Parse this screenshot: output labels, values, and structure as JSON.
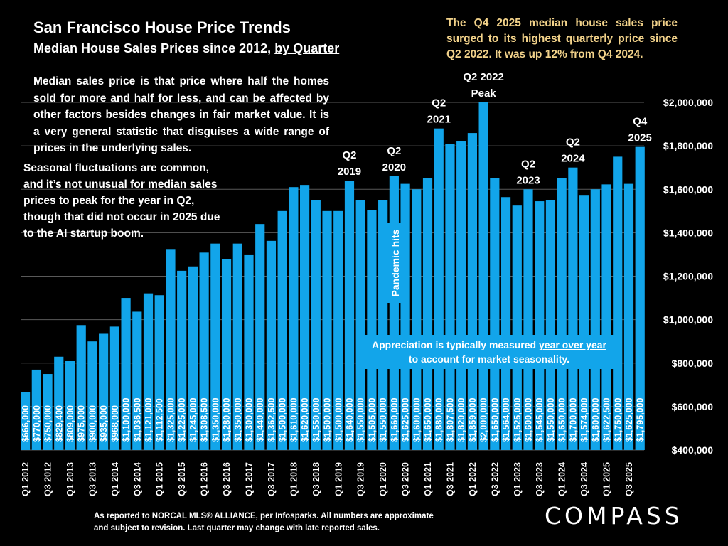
{
  "title": "San Francisco House Price Trends",
  "subtitle_prefix": "Median House Sales Prices since 2012, ",
  "subtitle_link": "by Quarter",
  "note1": "Median sales price is that price where half the homes sold for more and half for less, and can be affected by other factors besides changes in fair market value. It is a very general statistic that disguises a wide range of prices in the underlying sales.",
  "note2": "Seasonal fluctuations are common, and it’s not unusual for median sales prices to peak for the year in Q2, though that did not occur in 2025 due to the AI startup boom.",
  "headline": "The Q4 2025 median house sales price surged to its highest quarterly price since Q2 2022. It was up 12% from Q4 2024.",
  "pandemic_label": "Pandemic hits",
  "appreciation_prefix": "Appreciation is typically measured ",
  "appreciation_underlined": "year over year",
  "appreciation_suffix": "to account for market seasonality.",
  "footer_line1": "As reported to NORCAL MLS® ALLIANCE, per Infosparks. All numbers are approximate",
  "footer_line2": "and subject to revision. Last quarter may change with late reported sales.",
  "logo": "COMPASS",
  "colors": {
    "bar": "#12a5ea",
    "background": "#000000",
    "headline": "#f2d28a",
    "grid": "#595959"
  },
  "chart_data": {
    "type": "bar",
    "title": "San Francisco House Price Trends",
    "subtitle": "Median House Sales Prices since 2012, by Quarter",
    "ylim": [
      400000,
      2000000
    ],
    "y_ticks": [
      400000,
      600000,
      800000,
      1000000,
      1200000,
      1400000,
      1600000,
      1800000,
      2000000
    ],
    "y_tick_labels": [
      "$400,000",
      "$600,000",
      "$800,000",
      "$1,000,000",
      "$1,200,000",
      "$1,400,000",
      "$1,600,000",
      "$1,800,000",
      "$2,000,000"
    ],
    "y_axis_position": "right",
    "grid": true,
    "categories": [
      "Q1 2012",
      "Q2 2012",
      "Q3 2012",
      "Q4 2012",
      "Q1 2013",
      "Q2 2013",
      "Q3 2013",
      "Q4 2013",
      "Q1 2014",
      "Q2 2014",
      "Q3 2014",
      "Q4 2014",
      "Q1 2015",
      "Q2 2015",
      "Q3 2015",
      "Q4 2015",
      "Q1 2016",
      "Q2 2016",
      "Q3 2016",
      "Q4 2016",
      "Q1 2017",
      "Q2 2017",
      "Q3 2017",
      "Q4 2017",
      "Q1 2018",
      "Q2 2018",
      "Q3 2018",
      "Q4 2018",
      "Q1 2019",
      "Q2 2019",
      "Q3 2019",
      "Q4 2019",
      "Q1 2020",
      "Q2 2020",
      "Q3 2020",
      "Q4 2020",
      "Q1 2021",
      "Q2 2021",
      "Q3 2021",
      "Q4 2021",
      "Q1 2022",
      "Q2 2022",
      "Q3 2022",
      "Q4 2022",
      "Q1 2023",
      "Q2 2023",
      "Q3 2023",
      "Q4 2023",
      "Q1 2024",
      "Q2 2024",
      "Q3 2024",
      "Q4 2024",
      "Q1 2025",
      "Q2 2025",
      "Q3 2025",
      "Q4 2025"
    ],
    "shown_x_tick_labels": "every other quarter (Q1 and Q3)",
    "values": [
      666000,
      770000,
      750000,
      829400,
      809000,
      975000,
      900000,
      935000,
      968000,
      1100000,
      1036500,
      1121000,
      1112500,
      1325000,
      1225000,
      1245000,
      1308500,
      1350000,
      1280000,
      1350000,
      1300000,
      1440000,
      1362500,
      1500000,
      1610000,
      1620000,
      1550000,
      1500000,
      1500000,
      1640000,
      1550000,
      1505000,
      1550000,
      1660000,
      1625000,
      1600000,
      1650000,
      1880000,
      1807500,
      1820000,
      1859000,
      2000000,
      1650000,
      1564000,
      1525000,
      1600000,
      1545000,
      1550000,
      1650000,
      1700000,
      1574000,
      1600000,
      1622500,
      1750000,
      1625000,
      1795000
    ],
    "annotations": [
      {
        "category": "Q2 2019",
        "lines": [
          "Q2",
          "2019"
        ]
      },
      {
        "category": "Q2 2020",
        "lines": [
          "Q2",
          "2020"
        ]
      },
      {
        "category": "Q2 2021",
        "lines": [
          "Q2",
          "2021"
        ]
      },
      {
        "category": "Q2 2022",
        "lines": [
          "Q2 2022",
          "Peak"
        ]
      },
      {
        "category": "Q2 2023",
        "lines": [
          "Q2",
          "2023"
        ]
      },
      {
        "category": "Q2 2024",
        "lines": [
          "Q2",
          "2024"
        ]
      },
      {
        "category": "Q4 2025",
        "lines": [
          "Q4",
          "2025"
        ]
      }
    ]
  }
}
